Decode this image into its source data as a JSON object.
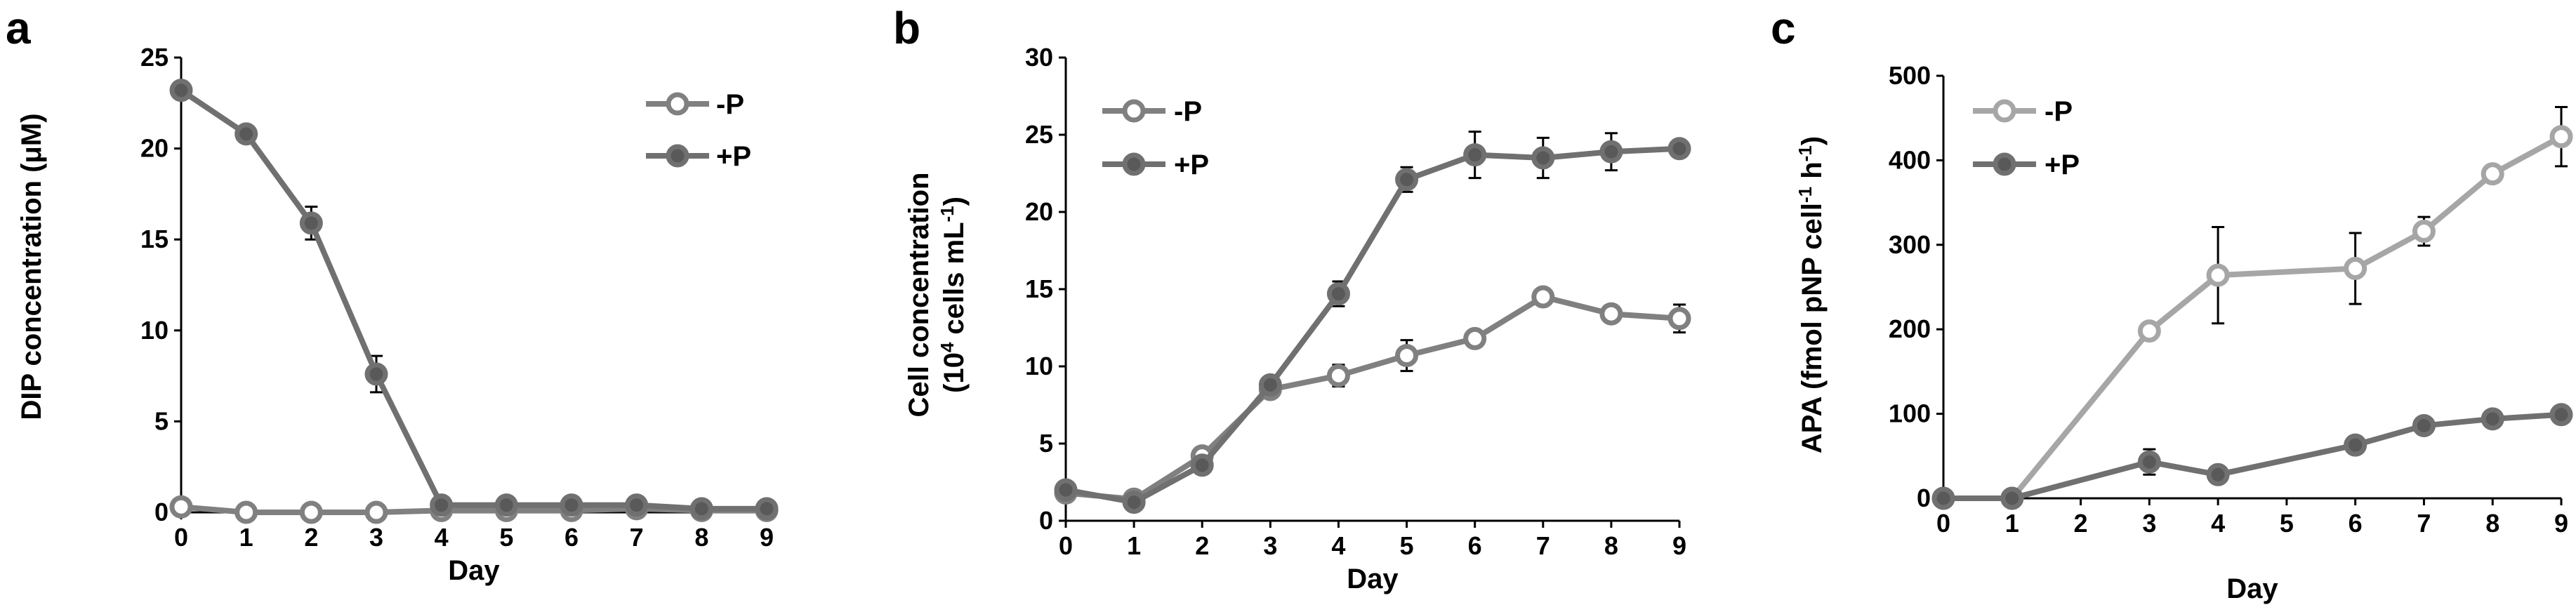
{
  "colors": {
    "minus_p_line": "#808080",
    "plus_p_line": "#707070",
    "minus_p_light_line": "#a6a6a6",
    "minus_p_marker_fill": "#ffffff",
    "plus_p_marker_fill": "#595959",
    "axis": "#000000"
  },
  "chart_data": [
    {
      "id": "a",
      "type": "line",
      "panel_label": "a",
      "title": "",
      "xlabel": "Day",
      "ylabel": "DIP concentration (μM)",
      "xlim": [
        0,
        9
      ],
      "ylim": [
        0,
        25
      ],
      "x_ticks": [
        "0",
        "1",
        "2",
        "3",
        "4",
        "5",
        "6",
        "7",
        "8",
        "9"
      ],
      "y_ticks": [
        "0",
        "5",
        "10",
        "15",
        "20",
        "25"
      ],
      "legend_position": "top-right",
      "series": [
        {
          "name": "-P",
          "style": "open",
          "color_key": "minus_p_line",
          "x": [
            0,
            1,
            2,
            3,
            4,
            5,
            6,
            7,
            8,
            9
          ],
          "y": [
            0.3,
            0.0,
            0.0,
            0.0,
            0.1,
            0.1,
            0.1,
            0.2,
            0.1,
            0.1
          ],
          "err": [
            0,
            0,
            0,
            0,
            0,
            0,
            0,
            0,
            0,
            0
          ]
        },
        {
          "name": "+P",
          "style": "filled",
          "color_key": "plus_p_line",
          "x": [
            0,
            1,
            2,
            3,
            4,
            5,
            6,
            7,
            8,
            9
          ],
          "y": [
            23.2,
            20.8,
            15.9,
            7.6,
            0.4,
            0.4,
            0.4,
            0.4,
            0.2,
            0.2
          ],
          "err": [
            0.3,
            0.3,
            0.9,
            1.0,
            0.3,
            0.3,
            0.3,
            0.3,
            0.1,
            0.1
          ]
        }
      ]
    },
    {
      "id": "b",
      "type": "line",
      "panel_label": "b",
      "title": "",
      "xlabel": "Day",
      "ylabel_line1": "Cell concentration",
      "ylabel_line2_pre": "(10",
      "ylabel_line2_sup": "4",
      "ylabel_line2_mid": " cells mL",
      "ylabel_line2_sup2": "-1",
      "ylabel_line2_post": ")",
      "xlim": [
        0,
        9
      ],
      "ylim": [
        0,
        30
      ],
      "x_ticks": [
        "0",
        "1",
        "2",
        "3",
        "4",
        "5",
        "6",
        "7",
        "8",
        "9"
      ],
      "y_ticks": [
        "0",
        "5",
        "10",
        "15",
        "20",
        "25",
        "30"
      ],
      "legend_position": "top-left",
      "series": [
        {
          "name": "-P",
          "style": "open",
          "color_key": "minus_p_line",
          "x": [
            0,
            1,
            2,
            3,
            4,
            5,
            6,
            7,
            8,
            9
          ],
          "y": [
            1.8,
            1.4,
            4.2,
            8.5,
            9.4,
            10.7,
            11.8,
            14.5,
            13.4,
            13.1
          ],
          "err": [
            0,
            0,
            0,
            0,
            0.7,
            1.0,
            0,
            0,
            0,
            0.9
          ]
        },
        {
          "name": "+P",
          "style": "filled",
          "color_key": "plus_p_line",
          "x": [
            0,
            1,
            2,
            3,
            4,
            5,
            6,
            7,
            8,
            9
          ],
          "y": [
            2.0,
            1.2,
            3.6,
            8.8,
            14.7,
            22.1,
            23.7,
            23.5,
            23.9,
            24.1
          ],
          "err": [
            0,
            0,
            0.4,
            0,
            0.8,
            0.8,
            1.5,
            1.3,
            1.2,
            0.5
          ]
        }
      ]
    },
    {
      "id": "c",
      "type": "line",
      "panel_label": "c",
      "title": "",
      "xlabel": "Day",
      "ylabel_pre": "APA (fmol pNP cell",
      "ylabel_sup1": "-1",
      "ylabel_mid": " h",
      "ylabel_sup2": "-1",
      "ylabel_post": ")",
      "xlim": [
        0,
        9
      ],
      "ylim": [
        0,
        500
      ],
      "x_ticks": [
        "0",
        "1",
        "2",
        "3",
        "4",
        "5",
        "6",
        "7",
        "8",
        "9"
      ],
      "y_ticks": [
        "0",
        "100",
        "200",
        "300",
        "400",
        "500"
      ],
      "legend_position": "top-left",
      "series": [
        {
          "name": "-P",
          "style": "open",
          "color_key": "minus_p_light_line",
          "x": [
            0,
            1,
            3,
            4,
            6,
            7,
            8,
            9
          ],
          "y": [
            0,
            0,
            198,
            264,
            272,
            316,
            384,
            428
          ],
          "err": [
            0,
            0,
            10,
            57,
            42,
            17,
            8,
            35
          ]
        },
        {
          "name": "+P",
          "style": "filled",
          "color_key": "plus_p_line",
          "x": [
            0,
            1,
            3,
            4,
            6,
            7,
            8,
            9
          ],
          "y": [
            0,
            0,
            43,
            28,
            63,
            86,
            94,
            99
          ],
          "err": [
            0,
            0,
            15,
            5,
            9,
            6,
            5,
            5
          ]
        }
      ]
    }
  ]
}
